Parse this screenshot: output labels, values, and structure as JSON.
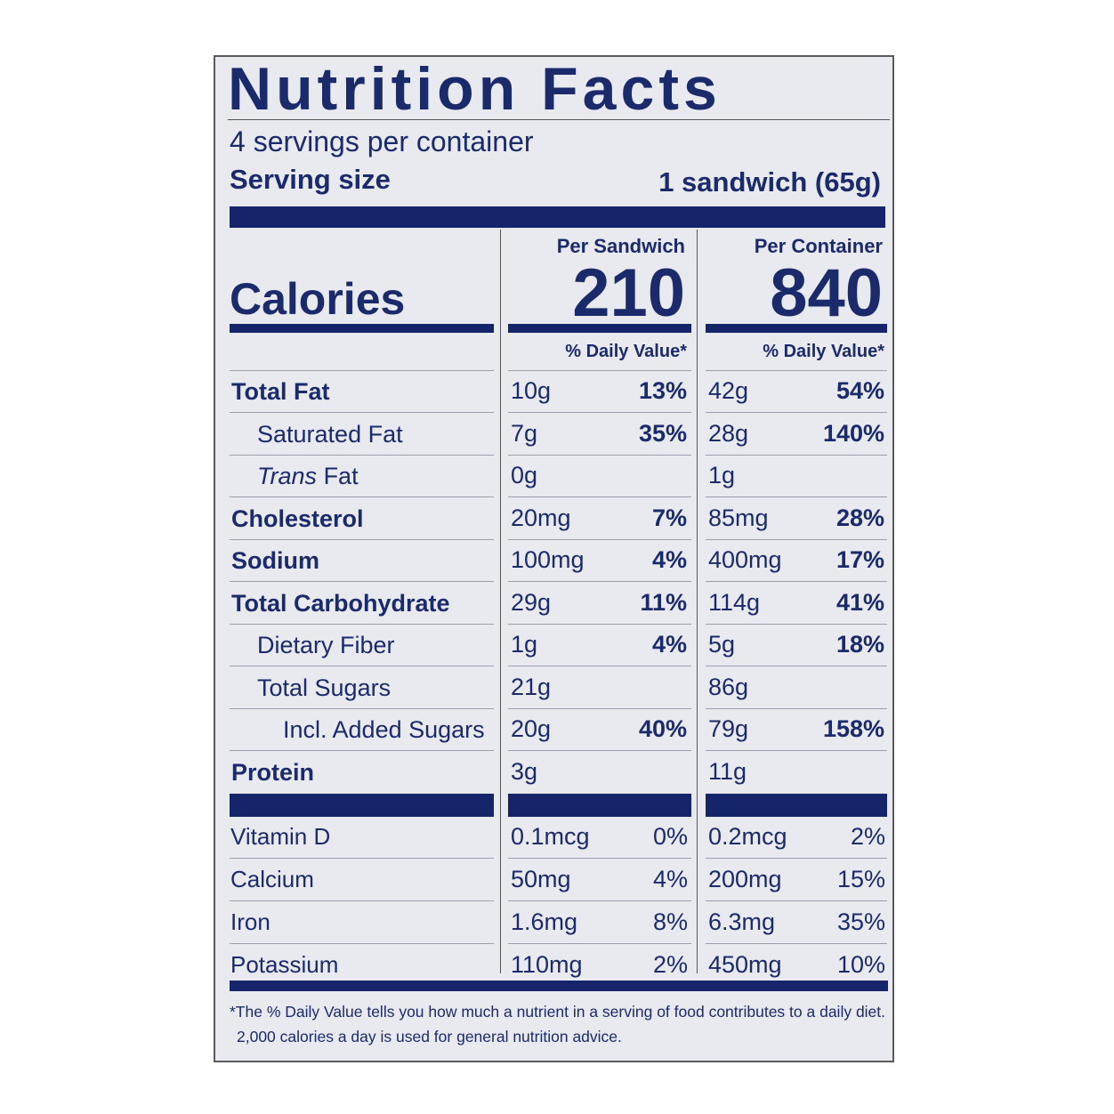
{
  "title": "Nutrition Facts",
  "servings": "4 servings per container",
  "serving_size": {
    "label": "Serving size",
    "value": "1 sandwich (65g)"
  },
  "columns": [
    "Per Sandwich",
    "Per Container"
  ],
  "calories": {
    "label": "Calories",
    "values": [
      "210",
      "840"
    ]
  },
  "dv_header": "% Daily Value*",
  "nutrients": [
    {
      "name": [
        {
          "text": "Total Fat"
        }
      ],
      "bold": true,
      "indent": 0,
      "cols": [
        [
          "10g",
          "13%"
        ],
        [
          "42g",
          "54%"
        ]
      ]
    },
    {
      "name": [
        {
          "text": "Saturated Fat"
        }
      ],
      "bold": false,
      "indent": 1,
      "cols": [
        [
          "7g",
          "35%"
        ],
        [
          "28g",
          "140%"
        ]
      ]
    },
    {
      "name": [
        {
          "text": "Trans",
          "italic": true
        },
        {
          "text": "Fat"
        }
      ],
      "bold": false,
      "indent": 1,
      "cols": [
        [
          "0g"
        ],
        [
          "1g"
        ]
      ]
    },
    {
      "name": [
        {
          "text": "Cholesterol"
        }
      ],
      "bold": true,
      "indent": 0,
      "cols": [
        [
          "20mg",
          "7%"
        ],
        [
          "85mg",
          "28%"
        ]
      ]
    },
    {
      "name": [
        {
          "text": "Sodium"
        }
      ],
      "bold": true,
      "indent": 0,
      "cols": [
        [
          "100mg",
          "4%"
        ],
        [
          "400mg",
          "17%"
        ]
      ]
    },
    {
      "name": [
        {
          "text": "Total Carbohydrate"
        }
      ],
      "bold": true,
      "indent": 0,
      "cols": [
        [
          "29g",
          "11%"
        ],
        [
          "114g",
          "41%"
        ]
      ]
    },
    {
      "name": [
        {
          "text": "Dietary Fiber"
        }
      ],
      "bold": false,
      "indent": 1,
      "cols": [
        [
          "1g",
          "4%"
        ],
        [
          "5g",
          "18%"
        ]
      ]
    },
    {
      "name": [
        {
          "text": "Total Sugars"
        }
      ],
      "bold": false,
      "indent": 1,
      "cols": [
        [
          "21g"
        ],
        [
          "86g"
        ]
      ]
    },
    {
      "name": [
        {
          "text": "Incl. Added Sugars"
        }
      ],
      "bold": false,
      "indent": 2,
      "cols": [
        [
          "20g",
          "40%"
        ],
        [
          "79g",
          "158%"
        ]
      ]
    },
    {
      "name": [
        {
          "text": "Protein"
        }
      ],
      "bold": true,
      "indent": 0,
      "cols": [
        [
          "3g"
        ],
        [
          "11g"
        ]
      ]
    }
  ],
  "vitamins": [
    {
      "name": "Vitamin D",
      "cols": [
        [
          "0.1mcg",
          "0%"
        ],
        [
          "0.2mcg",
          "2%"
        ]
      ]
    },
    {
      "name": "Calcium",
      "cols": [
        [
          "50mg",
          "4%"
        ],
        [
          "200mg",
          "15%"
        ]
      ]
    },
    {
      "name": "Iron",
      "cols": [
        [
          "1.6mg",
          "8%"
        ],
        [
          "6.3mg",
          "35%"
        ]
      ]
    },
    {
      "name": "Potassium",
      "cols": [
        [
          "110mg",
          "2%"
        ],
        [
          "450mg",
          "10%"
        ]
      ]
    }
  ],
  "footnote": [
    "*The % Daily Value tells you how much a nutrient in a serving of food contributes to a daily diet.",
    "2,000 calories a day is used for general nutrition advice."
  ]
}
